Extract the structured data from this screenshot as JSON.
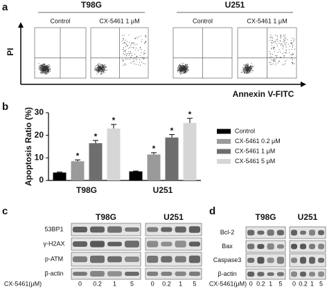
{
  "panel_a": {
    "label": "a",
    "groups": [
      {
        "name": "T98G",
        "conditions": [
          "Control",
          "CX-5461  1 μM"
        ]
      },
      {
        "name": "U251",
        "conditions": [
          "Control",
          "CX-5461  1 μM"
        ]
      }
    ],
    "y_axis": "PI",
    "x_axis": "Annexin V-FITC"
  },
  "chart_data": {
    "type": "bar",
    "panel_label": "b",
    "y_label": "Apoptosis Ratio (%)",
    "categories": [
      "T98G",
      "U251"
    ],
    "series": [
      {
        "name": "Control",
        "color": "#000000",
        "values": [
          3.5,
          4
        ],
        "errors": [
          0.2,
          0.2
        ]
      },
      {
        "name": "CX-5461 0.2 μM",
        "color": "#9a9a9a",
        "values": [
          8.5,
          11.5
        ],
        "errors": [
          0.6,
          0.8
        ],
        "annotations": [
          "*",
          "*"
        ]
      },
      {
        "name": "CX-5461 1 μM",
        "color": "#6e6e6e",
        "values": [
          16.5,
          19
        ],
        "errors": [
          1.2,
          1.3
        ],
        "annotations": [
          "*",
          "*"
        ]
      },
      {
        "name": "CX-5461 5 μM",
        "color": "#d6d6d6",
        "values": [
          23,
          25.5
        ],
        "errors": [
          1.8,
          2.0
        ],
        "annotations": [
          "*",
          "*"
        ]
      }
    ],
    "ylim": [
      0,
      30
    ],
    "yticks": [
      0,
      10,
      20,
      30
    ]
  },
  "panel_c": {
    "label": "c",
    "groups": [
      "T98G",
      "U251"
    ],
    "rows": [
      "53BP1",
      "γ-H2AX",
      "p-ATM",
      "β-actin"
    ],
    "dose_label": "CX-5461(μM)",
    "lanes": [
      "0",
      "0.2",
      "1",
      "5"
    ]
  },
  "panel_d": {
    "label": "d",
    "groups": [
      "T98G",
      "U251"
    ],
    "rows": [
      "Bcl-2",
      "Bax",
      "Caspase3",
      "β-actin"
    ],
    "dose_label": "CX-5461(μM)",
    "lanes": [
      "0",
      "0.2",
      "1",
      "5"
    ]
  }
}
